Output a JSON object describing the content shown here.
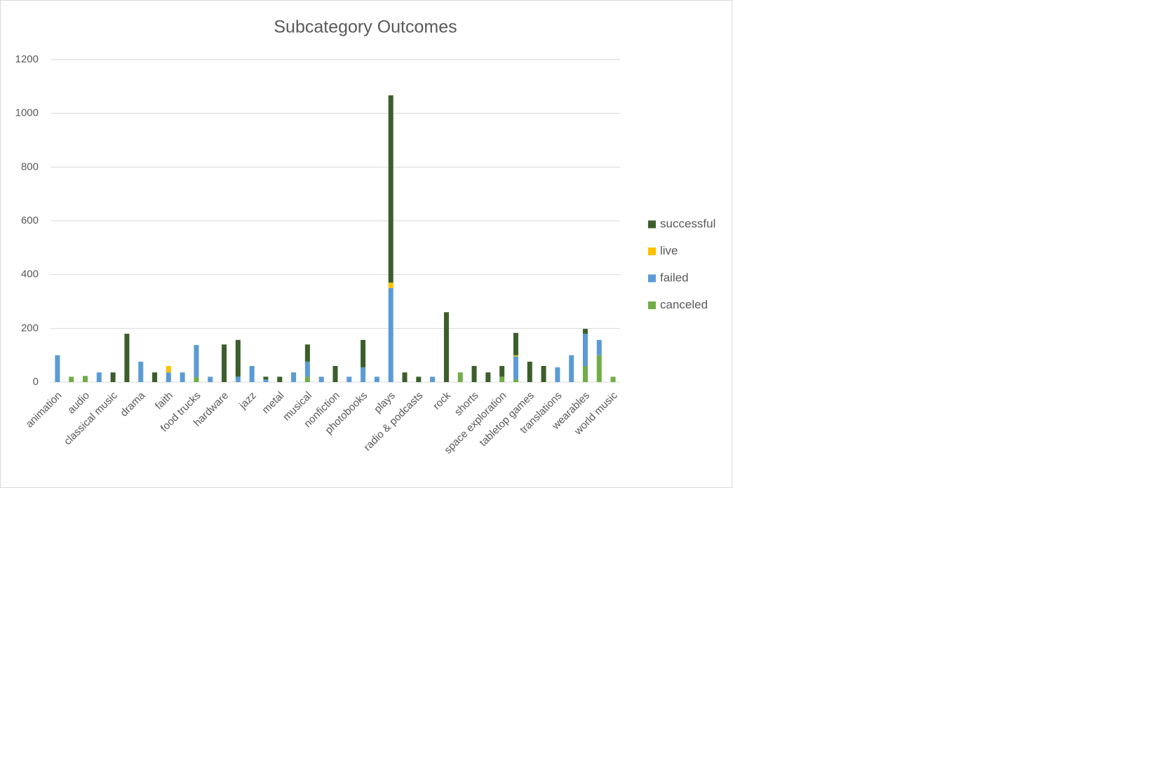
{
  "chart_data": {
    "type": "stacked_bar",
    "title": "Subcategory Outcomes",
    "categories": [
      "animation",
      null,
      "audio",
      null,
      "classical music",
      null,
      "drama",
      null,
      "faith",
      null,
      "food trucks",
      null,
      "hardware",
      null,
      "jazz",
      null,
      "metal",
      null,
      "musical",
      null,
      "nonfiction",
      null,
      "photobooks",
      null,
      "plays",
      null,
      "radio & podcasts",
      null,
      "rock",
      null,
      "shorts",
      null,
      "space exploration",
      null,
      "tabletop games",
      null,
      "translations",
      null,
      "wearables",
      null,
      "world music"
    ],
    "series": [
      {
        "name": "canceled",
        "color": "#70ad47",
        "values": [
          0,
          20,
          23,
          0,
          0,
          0,
          0,
          0,
          0,
          0,
          18,
          0,
          0,
          0,
          0,
          0,
          0,
          0,
          20,
          0,
          0,
          0,
          0,
          0,
          0,
          0,
          0,
          0,
          0,
          36,
          0,
          0,
          20,
          10,
          0,
          0,
          0,
          0,
          60,
          100,
          20
        ]
      },
      {
        "name": "failed",
        "color": "#5b9bd5",
        "values": [
          100,
          0,
          0,
          36,
          0,
          0,
          76,
          0,
          36,
          36,
          120,
          20,
          0,
          20,
          60,
          10,
          0,
          36,
          56,
          20,
          0,
          20,
          55,
          20,
          350,
          0,
          0,
          20,
          0,
          0,
          0,
          0,
          0,
          86,
          0,
          0,
          55,
          100,
          120,
          57,
          0
        ]
      },
      {
        "name": "live",
        "color": "#ffc000",
        "values": [
          0,
          0,
          0,
          0,
          0,
          0,
          0,
          0,
          24,
          0,
          0,
          0,
          0,
          0,
          0,
          0,
          0,
          0,
          0,
          0,
          0,
          0,
          0,
          0,
          20,
          0,
          0,
          0,
          0,
          0,
          0,
          0,
          0,
          4,
          0,
          0,
          0,
          0,
          0,
          0,
          0
        ]
      },
      {
        "name": "successful",
        "color": "#3b5e2b",
        "values": [
          0,
          0,
          0,
          0,
          36,
          180,
          0,
          36,
          0,
          0,
          0,
          0,
          140,
          137,
          0,
          10,
          20,
          0,
          64,
          0,
          60,
          0,
          102,
          0,
          697,
          36,
          20,
          0,
          260,
          0,
          60,
          36,
          40,
          83,
          76,
          60,
          0,
          0,
          18,
          0,
          0
        ]
      }
    ],
    "ylim": [
      0,
      1200
    ],
    "yticks": [
      0,
      200,
      400,
      600,
      800,
      1000,
      1200
    ],
    "grid": true,
    "legend": "right"
  }
}
